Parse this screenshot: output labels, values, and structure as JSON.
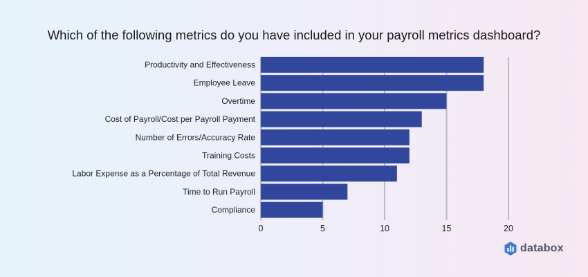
{
  "chart_data": {
    "type": "bar",
    "orientation": "horizontal",
    "title": "Which of the following metrics do you have included in your payroll metrics dashboard?",
    "categories": [
      "Productivity and Effectiveness",
      "Employee Leave",
      "Overtime",
      "Cost of Payroll/Cost per Payroll Payment",
      "Number of Errors/Accuracy Rate",
      "Training Costs",
      "Labor Expense as a Percentage of Total Revenue",
      "Time to Run Payroll",
      "Compliance"
    ],
    "values": [
      18,
      18,
      15,
      13,
      12,
      12,
      11,
      7,
      5
    ],
    "xlim": [
      0,
      20
    ],
    "xticks": [
      0,
      5,
      10,
      15,
      20
    ],
    "grid": true,
    "legend": "none",
    "bar_color": "#30479b",
    "grid_color": "#b9b9c3"
  },
  "brand": {
    "name": "databox",
    "icon": "databox-logo-icon",
    "color": "#4d5668",
    "accent": "#3a7bd5"
  }
}
